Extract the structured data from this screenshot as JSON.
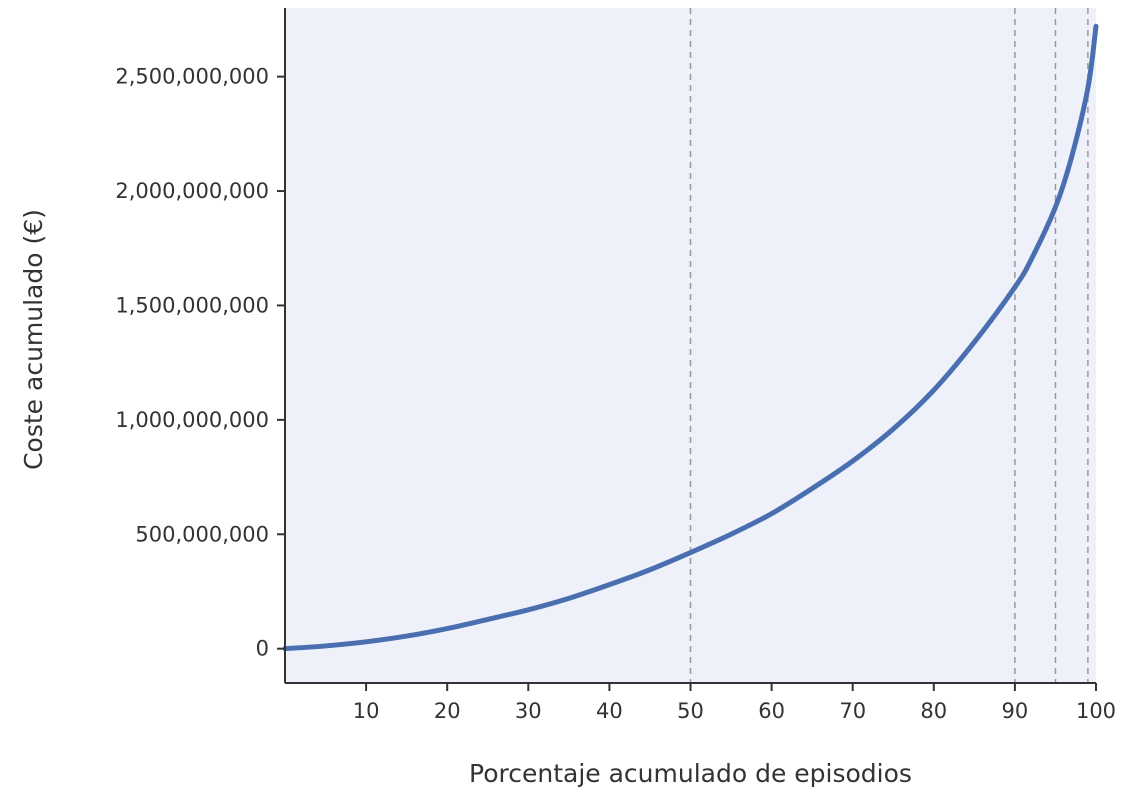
{
  "chart_data": {
    "type": "line",
    "title": "",
    "xlabel": "Porcentaje acumulado de episodios",
    "ylabel": "Coste acumulado (€)",
    "xlim": [
      0,
      100
    ],
    "ylim": [
      -150000000,
      2800000000
    ],
    "x_ticks": [
      10,
      20,
      30,
      40,
      50,
      60,
      70,
      80,
      90,
      100
    ],
    "x_tick_labels": [
      "10",
      "20",
      "30",
      "40",
      "50",
      "60",
      "70",
      "80",
      "90",
      "100"
    ],
    "y_ticks": [
      0,
      500000000,
      1000000000,
      1500000000,
      2000000000,
      2500000000
    ],
    "y_tick_labels": [
      "0",
      "500,000,000",
      "1,000,000,000",
      "1,500,000,000",
      "2,000,000,000",
      "2,500,000,000"
    ],
    "reference_lines_x": [
      50,
      90,
      95,
      99
    ],
    "grid": false,
    "colors": {
      "line": "#4a6fb1",
      "plot_background": "#eef1fa",
      "reference_line": "#999999",
      "axis": "#333333"
    },
    "series": [
      {
        "x": [
          0,
          5,
          10,
          15,
          20,
          25,
          30,
          35,
          40,
          45,
          50,
          55,
          60,
          65,
          70,
          75,
          80,
          85,
          90,
          92,
          95,
          97,
          99,
          100
        ],
        "values": [
          0,
          12000000,
          30000000,
          55000000,
          88000000,
          128000000,
          170000000,
          220000000,
          280000000,
          345000000,
          420000000,
          500000000,
          590000000,
          700000000,
          820000000,
          960000000,
          1130000000,
          1340000000,
          1580000000,
          1700000000,
          1930000000,
          2150000000,
          2450000000,
          2720000000
        ]
      }
    ]
  }
}
